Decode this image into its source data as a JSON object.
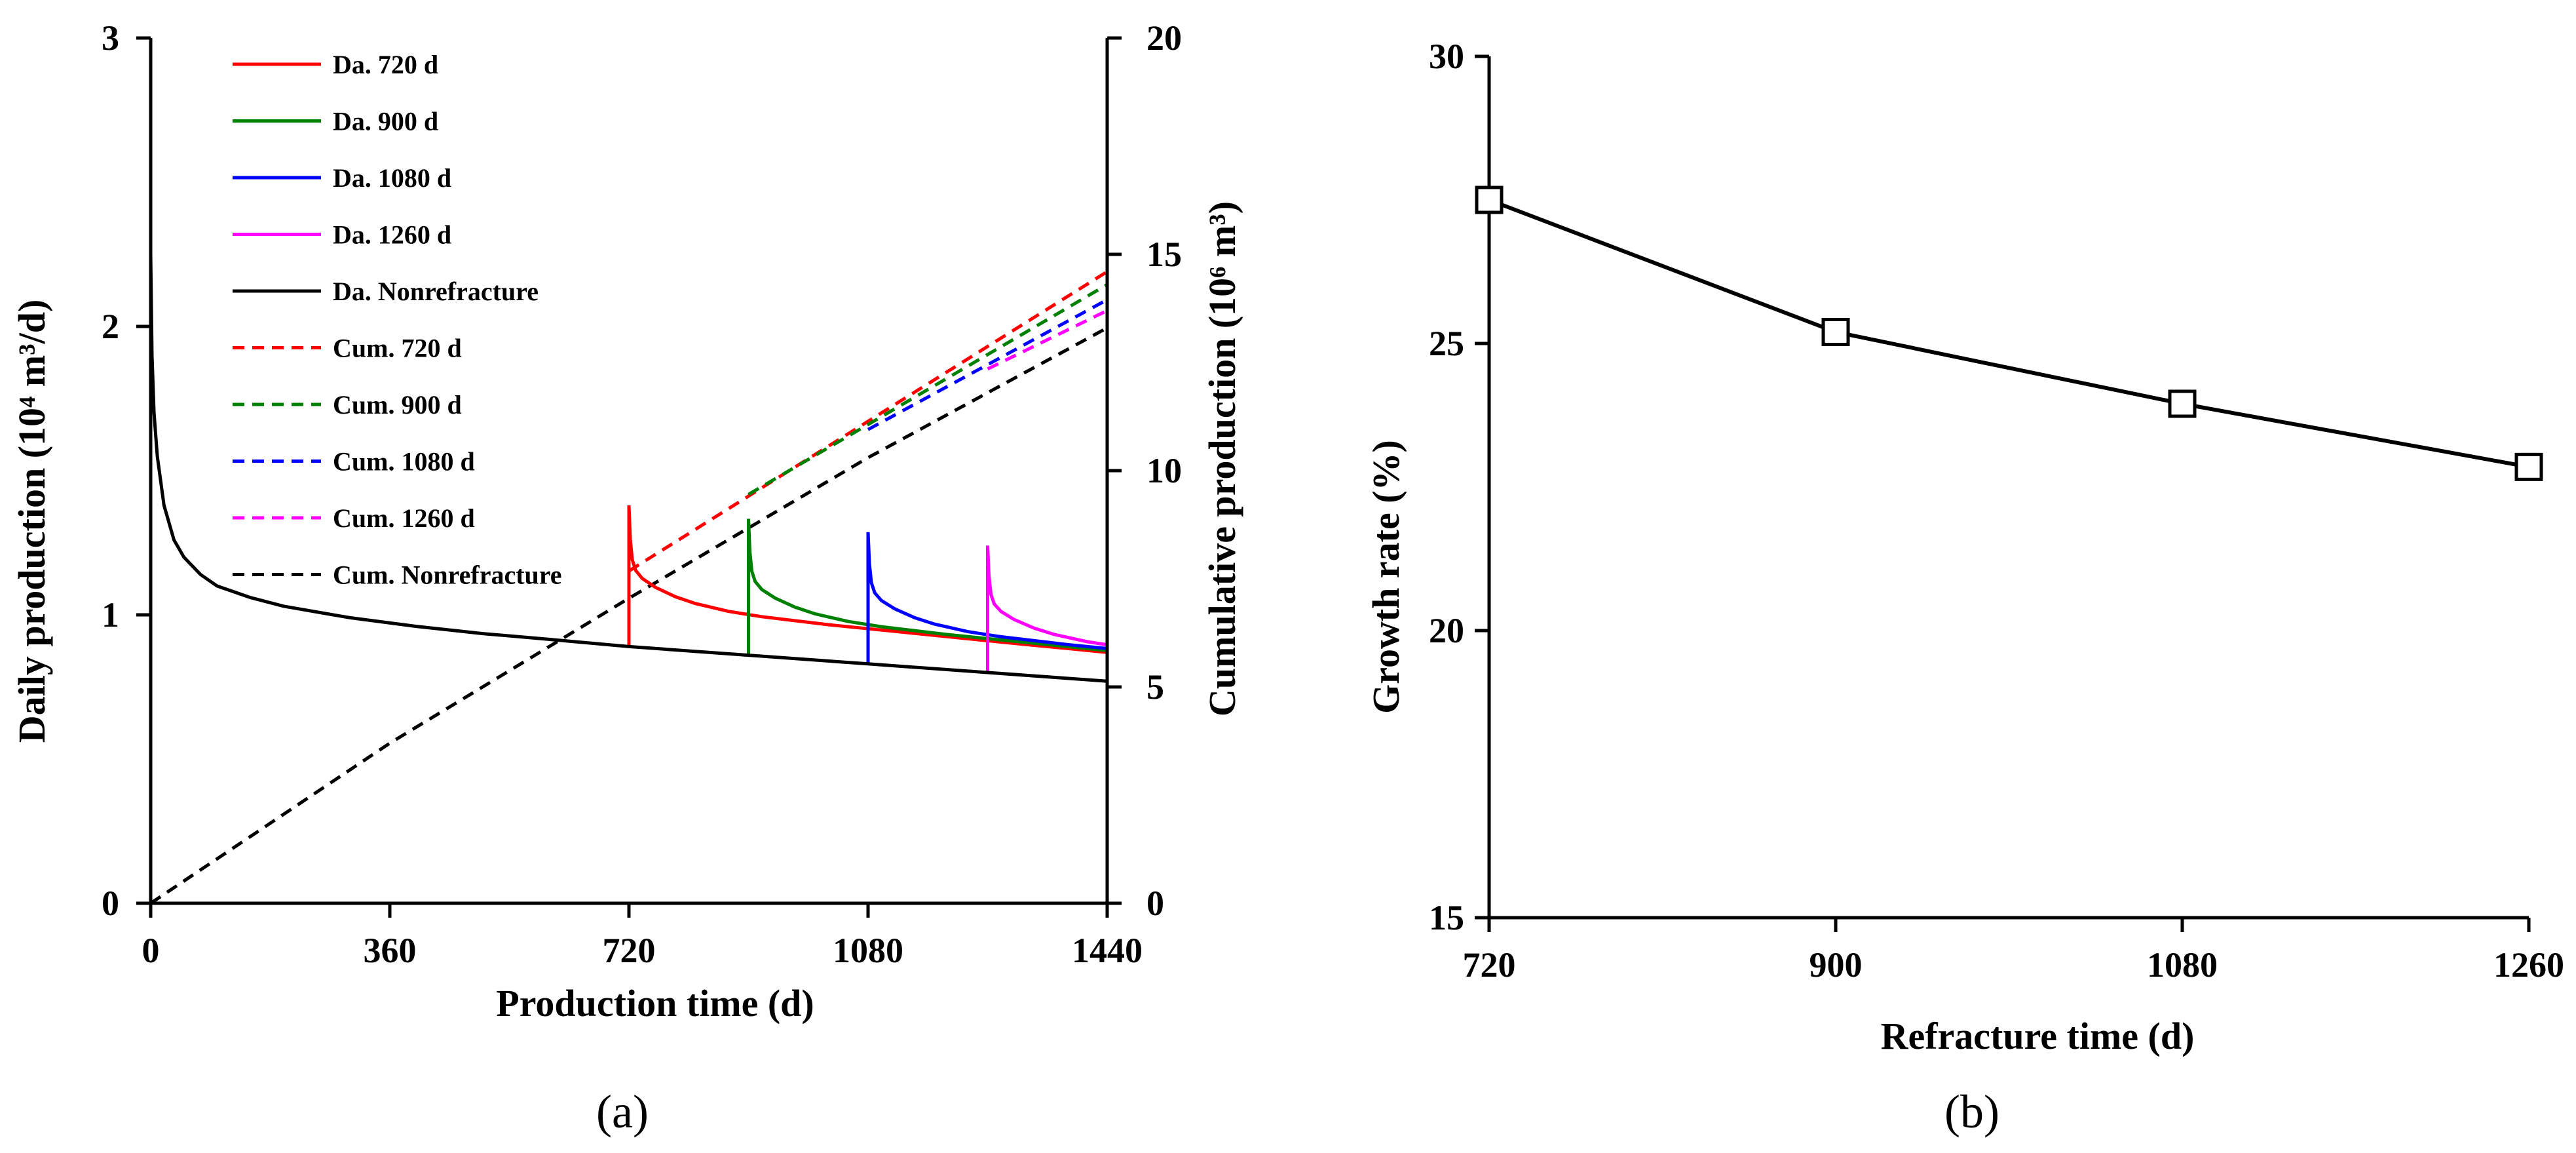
{
  "chart_data": [
    {
      "type": "line",
      "panel_label": "(a)",
      "xlabel": "Production time (d)",
      "ylabel_left": "Daily production (10⁴ m³/d)",
      "ylabel_right": "Cumulative  production  (10⁶ m³)",
      "xlim": [
        0,
        1440
      ],
      "ylim_left": [
        0,
        3
      ],
      "ylim_right": [
        0,
        20
      ],
      "x_ticks": [
        "0",
        "360",
        "720",
        "1080",
        "1440"
      ],
      "y_left_ticks": [
        "0",
        "1",
        "2",
        "3"
      ],
      "y_right_ticks": [
        "0",
        "5",
        "10",
        "15",
        "20"
      ],
      "baseline_daily": {
        "x": [
          0,
          2,
          5,
          10,
          20,
          35,
          50,
          75,
          100,
          150,
          200,
          300,
          400,
          500,
          600,
          720,
          900,
          1080,
          1260,
          1440
        ],
        "y": [
          2.25,
          1.9,
          1.7,
          1.55,
          1.38,
          1.26,
          1.2,
          1.14,
          1.1,
          1.06,
          1.03,
          0.99,
          0.96,
          0.935,
          0.915,
          0.89,
          0.86,
          0.83,
          0.8,
          0.77
        ]
      },
      "refracture_daily": {
        "dx": [
          0,
          2,
          5,
          10,
          20,
          40,
          70,
          100,
          150,
          200,
          300,
          400,
          500,
          600,
          720
        ],
        "factor": [
          1.55,
          1.42,
          1.34,
          1.3,
          1.27,
          1.24,
          1.21,
          1.19,
          1.17,
          1.16,
          1.15,
          1.145,
          1.14,
          1.135,
          1.13
        ]
      },
      "series": [
        {
          "name": "Da. 720 d",
          "axis": "left",
          "style": "solid",
          "color": "#ff0000",
          "refracture_time": 720
        },
        {
          "name": "Da. 900 d",
          "axis": "left",
          "style": "solid",
          "color": "#008000",
          "refracture_time": 900
        },
        {
          "name": "Da. 1080 d",
          "axis": "left",
          "style": "solid",
          "color": "#0000ff",
          "refracture_time": 1080
        },
        {
          "name": "Da. 1260 d",
          "axis": "left",
          "style": "solid",
          "color": "#ff00ff",
          "refracture_time": 1260
        },
        {
          "name": "Da. Nonrefracture",
          "axis": "left",
          "style": "solid",
          "color": "#000000",
          "refracture_time": null
        },
        {
          "name": "Cum. 720 d",
          "axis": "right",
          "style": "dashed",
          "color": "#ff0000",
          "x": [
            720,
            1440
          ],
          "y": [
            7.68,
            14.6
          ]
        },
        {
          "name": "Cum. 900 d",
          "axis": "right",
          "style": "dashed",
          "color": "#008000",
          "x": [
            900,
            1440
          ],
          "y": [
            9.45,
            14.3
          ]
        },
        {
          "name": "Cum. 1080 d",
          "axis": "right",
          "style": "dashed",
          "color": "#0000ff",
          "x": [
            1080,
            1440
          ],
          "y": [
            10.95,
            13.95
          ]
        },
        {
          "name": "Cum. 1260 d",
          "axis": "right",
          "style": "dashed",
          "color": "#ff00ff",
          "x": [
            1260,
            1440
          ],
          "y": [
            12.35,
            13.7
          ]
        },
        {
          "name": "Cum. Nonrefracture",
          "axis": "right",
          "style": "dashed",
          "color": "#000000",
          "x": [
            0,
            360,
            720,
            1080,
            1440
          ],
          "y": [
            0,
            3.7,
            7.05,
            10.3,
            13.3
          ]
        }
      ]
    },
    {
      "type": "line",
      "panel_label": "(b)",
      "xlabel": "Refracture time (d)",
      "ylabel": "Growth rate (%)",
      "categories": [
        "720",
        "900",
        "1080",
        "1260"
      ],
      "x": [
        720,
        900,
        1080,
        1260
      ],
      "values": [
        27.5,
        25.2,
        23.95,
        22.85
      ],
      "xlim": [
        720,
        1260
      ],
      "ylim": [
        15,
        30
      ],
      "y_ticks": [
        "15",
        "20",
        "25",
        "30"
      ],
      "marker": "open-square",
      "color": "#000000"
    }
  ]
}
